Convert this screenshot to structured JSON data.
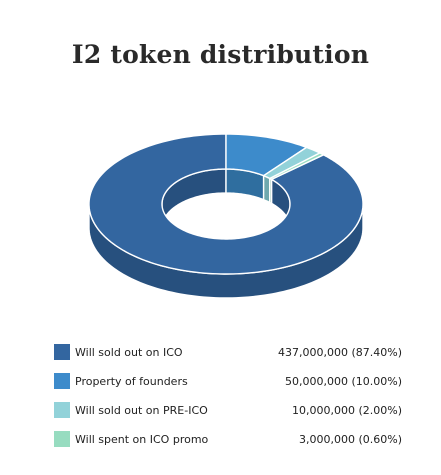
{
  "chart_data": {
    "type": "pie",
    "title": "I2 token distribution",
    "donut": true,
    "three_d": true,
    "legend_position": "bottom",
    "slices": [
      {
        "label": "Will sold out on ICO",
        "value": 437000000,
        "value_text": "437,000,000 (87.40%)",
        "percent": 87.4,
        "color": "#3366a0",
        "side_color": "#27507e"
      },
      {
        "label": "Property of founders",
        "value": 50000000,
        "value_text": "50,000,000 (10.00%)",
        "percent": 10.0,
        "color": "#3d8bcb",
        "side_color": "#2f6e9f"
      },
      {
        "label": "Will sold out on PRE-ICO",
        "value": 10000000,
        "value_text": "10,000,000 (2.00%)",
        "percent": 2.0,
        "color": "#92d2d9",
        "side_color": "#6fa8ae"
      },
      {
        "label": "Will spent on ICO promo",
        "value": 3000000,
        "value_text": "3,000,000 (0.60%)",
        "percent": 0.6,
        "color": "#97dcc0",
        "side_color": "#72b096"
      }
    ]
  }
}
